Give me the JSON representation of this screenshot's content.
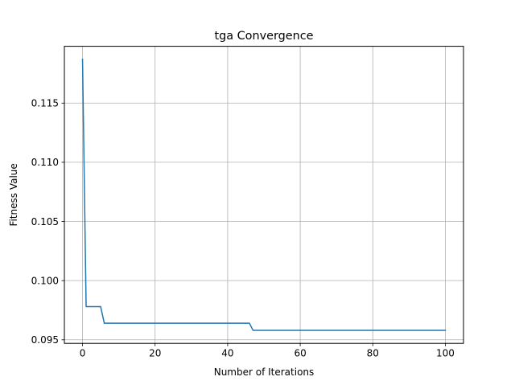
{
  "chart_data": {
    "type": "line",
    "title": "tga Convergence",
    "xlabel": "Number of Iterations",
    "ylabel": "Fitness Value",
    "xlim": [
      -5,
      105
    ],
    "ylim": [
      0.0947,
      0.1198
    ],
    "xticks": [
      0,
      20,
      40,
      60,
      80,
      100
    ],
    "xtick_labels": [
      "0",
      "20",
      "40",
      "60",
      "80",
      "100"
    ],
    "yticks": [
      0.095,
      0.1,
      0.105,
      0.11,
      0.115
    ],
    "ytick_labels": [
      "0.095",
      "0.100",
      "0.105",
      "0.110",
      "0.115"
    ],
    "grid": true,
    "legend": null,
    "series": [
      {
        "color": "#1f77b4",
        "x": [
          0,
          1,
          5,
          6,
          46,
          47,
          100
        ],
        "y": [
          0.1187,
          0.0978,
          0.0978,
          0.0964,
          0.0964,
          0.0958,
          0.0958
        ]
      }
    ]
  }
}
